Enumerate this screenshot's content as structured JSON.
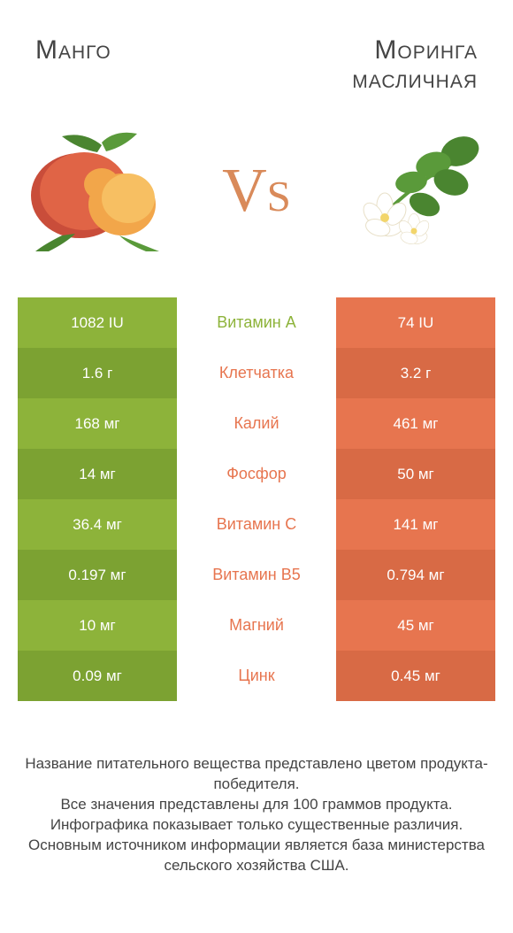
{
  "titles": {
    "left": "Mанго",
    "right_line1": "Моринга",
    "right_line2": "масличная"
  },
  "vs": "vs",
  "colors": {
    "left_food": "#8db33a",
    "right_food": "#e7754f",
    "left_dark": "#7ca232",
    "right_dark": "#d86a45",
    "text": "#444444"
  },
  "rows": [
    {
      "nutrient": "Витамин A",
      "left": "1082 IU",
      "right": "74 IU",
      "winner": "left"
    },
    {
      "nutrient": "Клетчатка",
      "left": "1.6 г",
      "right": "3.2 г",
      "winner": "right"
    },
    {
      "nutrient": "Калий",
      "left": "168 мг",
      "right": "461 мг",
      "winner": "right"
    },
    {
      "nutrient": "Фосфор",
      "left": "14 мг",
      "right": "50 мг",
      "winner": "right"
    },
    {
      "nutrient": "Витамин C",
      "left": "36.4 мг",
      "right": "141 мг",
      "winner": "right"
    },
    {
      "nutrient": "Витамин B5",
      "left": "0.197 мг",
      "right": "0.794 мг",
      "winner": "right"
    },
    {
      "nutrient": "Магний",
      "left": "10 мг",
      "right": "45 мг",
      "winner": "right"
    },
    {
      "nutrient": "Цинк",
      "left": "0.09 мг",
      "right": "0.45 мг",
      "winner": "right"
    }
  ],
  "footer": [
    "Название питательного вещества представлено цветом продукта-победителя.",
    "Все значения представлены для 100 граммов продукта.",
    "Инфографика показывает только существенные различия.",
    "Основным источником информации является база министерства сельского хозяйства США."
  ]
}
